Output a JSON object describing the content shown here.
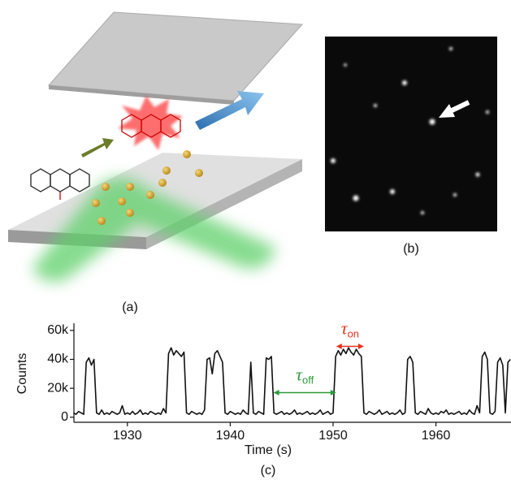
{
  "panel_labels": [
    "(a)",
    "(b)",
    "(c)"
  ],
  "chart_data": {
    "type": "line",
    "x_label": "Time (s)",
    "y_label": "Counts",
    "x": [
      1924.75,
      1925,
      1925.25,
      1925.5,
      1925.75,
      1926,
      1926.25,
      1926.5,
      1926.75,
      1927,
      1927.25,
      1927.5,
      1927.75,
      1928,
      1928.25,
      1928.5,
      1928.75,
      1929,
      1929.25,
      1929.5,
      1929.75,
      1930,
      1930.25,
      1930.5,
      1930.75,
      1931,
      1931.25,
      1931.5,
      1931.75,
      1932,
      1932.25,
      1932.5,
      1932.75,
      1933,
      1933.25,
      1933.5,
      1933.75,
      1934,
      1934.25,
      1934.5,
      1934.75,
      1935,
      1935.25,
      1935.5,
      1935.75,
      1936,
      1936.25,
      1936.5,
      1936.75,
      1937,
      1937.25,
      1937.5,
      1937.75,
      1938,
      1938.25,
      1938.5,
      1938.75,
      1939,
      1939.25,
      1939.5,
      1939.75,
      1940,
      1940.25,
      1940.5,
      1940.75,
      1941,
      1941.25,
      1941.5,
      1941.75,
      1942,
      1942.25,
      1942.5,
      1942.75,
      1943,
      1943.25,
      1943.5,
      1943.75,
      1944,
      1944.25,
      1944.5,
      1944.75,
      1945,
      1945.25,
      1945.5,
      1945.75,
      1946,
      1946.25,
      1946.5,
      1946.75,
      1947,
      1947.25,
      1947.5,
      1947.75,
      1948,
      1948.25,
      1948.5,
      1948.75,
      1949,
      1949.25,
      1949.5,
      1949.75,
      1950,
      1950.25,
      1950.5,
      1950.75,
      1951,
      1951.25,
      1951.5,
      1951.75,
      1952,
      1952.25,
      1952.5,
      1952.75,
      1953,
      1953.25,
      1953.5,
      1953.75,
      1954,
      1954.25,
      1954.5,
      1954.75,
      1955,
      1955.25,
      1955.5,
      1955.75,
      1956,
      1956.25,
      1956.5,
      1956.75,
      1957,
      1957.25,
      1957.5,
      1957.75,
      1958,
      1958.25,
      1958.5,
      1958.75,
      1959,
      1959.25,
      1959.5,
      1959.75,
      1960,
      1960.25,
      1960.5,
      1960.75,
      1961,
      1961.25,
      1961.5,
      1961.75,
      1962,
      1962.25,
      1962.5,
      1962.75,
      1963,
      1963.25,
      1963.5,
      1963.75,
      1964,
      1964.25,
      1964.5,
      1964.75,
      1965,
      1965.25,
      1965.5,
      1965.75,
      1966,
      1966.25,
      1966.5,
      1966.75,
      1967,
      1967.25
    ],
    "values": [
      3000,
      2000,
      4000,
      3000,
      2000,
      38000,
      41000,
      36000,
      40000,
      3000,
      2000,
      5000,
      2000,
      3000,
      2000,
      4000,
      3000,
      2000,
      3000,
      8000,
      2000,
      3000,
      2000,
      4000,
      2000,
      3000,
      5000,
      2000,
      3000,
      2000,
      4000,
      3000,
      2000,
      3000,
      2000,
      6000,
      3000,
      44000,
      48000,
      43000,
      46000,
      44000,
      42000,
      45000,
      3000,
      2000,
      4000,
      3000,
      2000,
      3000,
      2000,
      5000,
      40000,
      41000,
      30000,
      44000,
      46000,
      42000,
      38000,
      3000,
      2000,
      4000,
      3000,
      2000,
      3000,
      2000,
      5000,
      3000,
      2000,
      38000,
      3000,
      2000,
      4000,
      3000,
      2000,
      41000,
      40000,
      42000,
      3000,
      2000,
      3000,
      4000,
      2000,
      3000,
      2000,
      3000,
      5000,
      2000,
      3000,
      2000,
      3000,
      4000,
      2000,
      3000,
      2000,
      3000,
      5000,
      2000,
      3000,
      4000,
      2000,
      3000,
      42000,
      46000,
      43000,
      47000,
      44000,
      48000,
      45000,
      43000,
      47000,
      44000,
      42000,
      3000,
      2000,
      4000,
      3000,
      2000,
      3000,
      5000,
      2000,
      3000,
      4000,
      2000,
      3000,
      2000,
      3000,
      5000,
      2000,
      3000,
      40000,
      42000,
      38000,
      3000,
      2000,
      4000,
      3000,
      2000,
      6000,
      3000,
      2000,
      3000,
      2000,
      4000,
      3000,
      5000,
      2000,
      3000,
      2000,
      3000,
      4000,
      2000,
      3000,
      2000,
      5000,
      3000,
      2000,
      8000,
      3000,
      42000,
      45000,
      40000,
      3000,
      2000,
      4000,
      38000,
      41000,
      36000,
      3000,
      38000,
      40000
    ],
    "color": "#111111",
    "xlim": [
      1924.8,
      1967.3
    ],
    "xticks": [
      1930,
      1940,
      1950,
      1960
    ],
    "ylim": [
      -3500,
      65000
    ],
    "yticks": [
      0,
      {
        "value": 20000,
        "label": "20k"
      },
      {
        "value": 40000,
        "label": "40k"
      },
      {
        "value": 60000,
        "label": "60k"
      }
    ],
    "annotations": [
      {
        "symbol": "τ",
        "subscript": "off",
        "start": 1944.2,
        "end": 1950.3,
        "color": "#2e9a3a"
      },
      {
        "symbol": "τ",
        "subscript": "on",
        "start": 1950.3,
        "end": 1953.0,
        "color": "#e8321e"
      }
    ]
  }
}
